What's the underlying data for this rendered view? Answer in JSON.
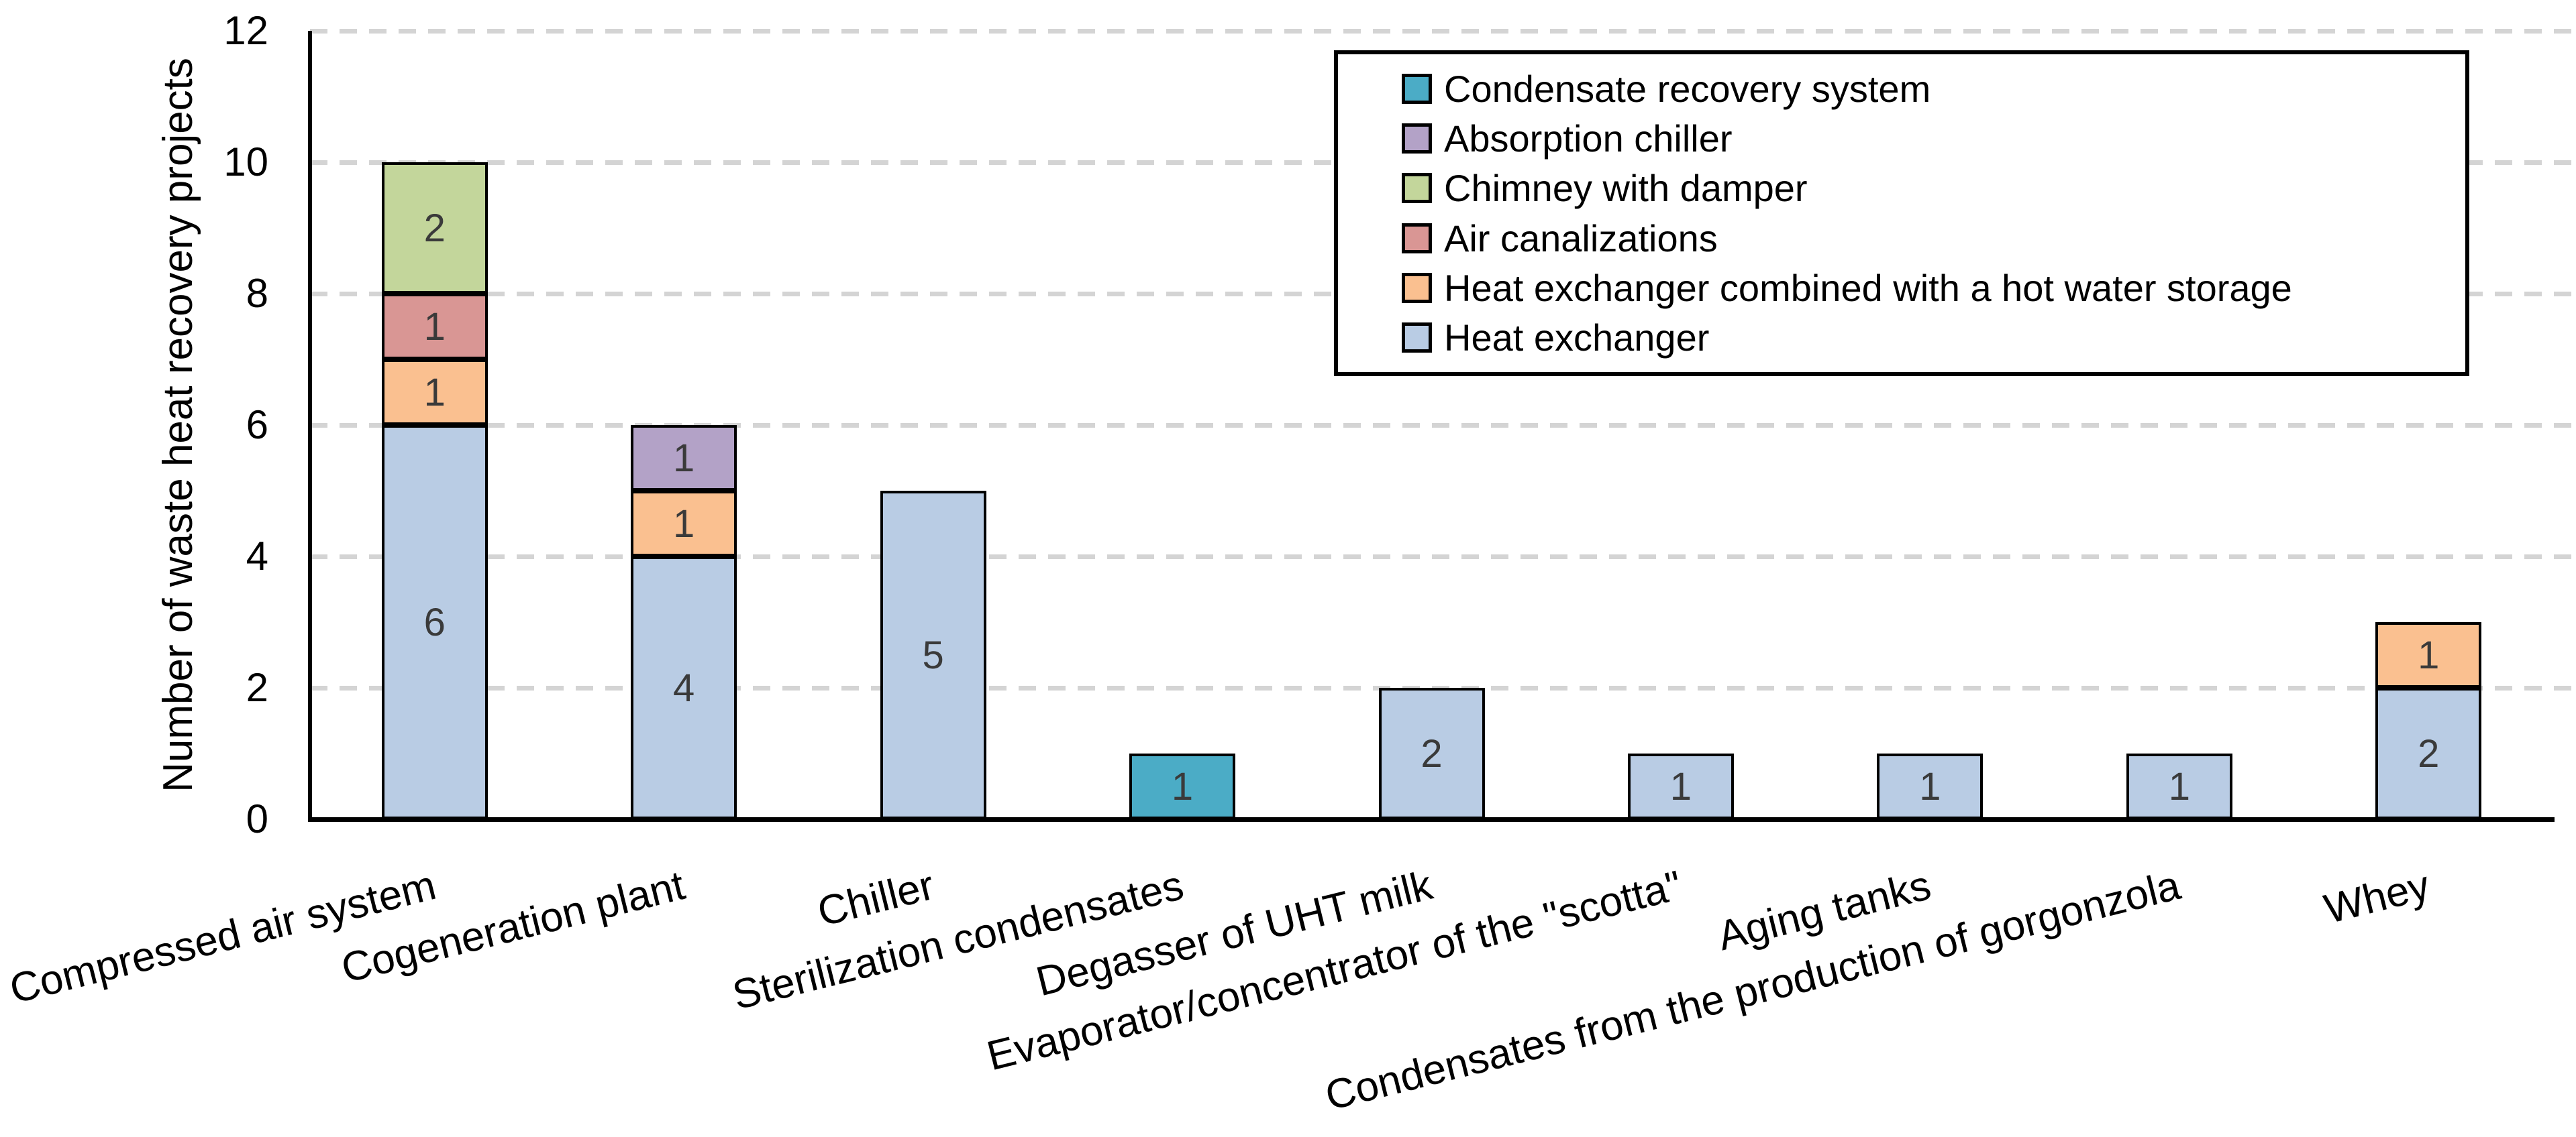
{
  "chart_data": {
    "type": "bar",
    "stacked": true,
    "ylabel": "Number of waste heat recovery projects",
    "ylim": [
      0,
      12
    ],
    "yticks": [
      0,
      2,
      4,
      6,
      8,
      10,
      12
    ],
    "grid": "dashed horizontal",
    "legend_position": "top-right",
    "categories": [
      "Compressed air system",
      "Cogeneration plant",
      "Chiller",
      "Sterilization condensates",
      "Degasser of UHT milk",
      "Evaporator/concentrator of the \"scotta\"",
      "Aging tanks",
      "Condensates from the production of gorgonzola",
      "Whey"
    ],
    "series": [
      {
        "name": "Condensate recovery system",
        "color": "#4BACC6",
        "values": [
          0,
          0,
          0,
          1,
          0,
          0,
          0,
          0,
          0
        ]
      },
      {
        "name": "Absorption chiller",
        "color": "#B3A2C7",
        "values": [
          0,
          1,
          0,
          0,
          0,
          0,
          0,
          0,
          0
        ]
      },
      {
        "name": "Chimney with damper",
        "color": "#C3D69B",
        "values": [
          2,
          0,
          0,
          0,
          0,
          0,
          0,
          0,
          0
        ]
      },
      {
        "name": "Air canalizations",
        "color": "#D99694",
        "values": [
          1,
          0,
          0,
          0,
          0,
          0,
          0,
          0,
          0
        ]
      },
      {
        "name": "Heat exchanger combined with a hot water storage",
        "color": "#FAC090",
        "values": [
          1,
          1,
          0,
          0,
          0,
          0,
          0,
          0,
          1
        ]
      },
      {
        "name": "Heat exchanger",
        "color": "#B9CCE4",
        "values": [
          6,
          4,
          5,
          0,
          2,
          1,
          1,
          1,
          2
        ]
      }
    ],
    "bar_totals": [
      10,
      6,
      5,
      1,
      2,
      1,
      1,
      1,
      3
    ],
    "data_label_color": "#3a3a3a"
  }
}
